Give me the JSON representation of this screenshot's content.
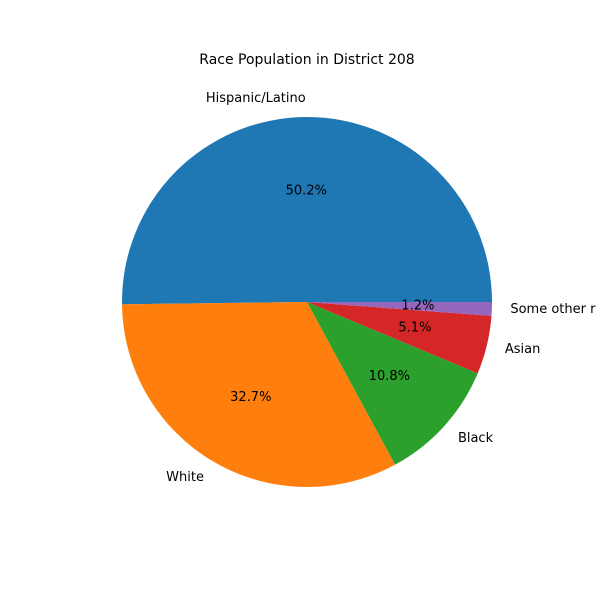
{
  "chart_data": {
    "type": "pie",
    "title": "Race Population in District 208",
    "categories": [
      "Hispanic/Latino",
      "White",
      "Black",
      "Asian",
      "Some other r"
    ],
    "values": [
      50.2,
      32.7,
      10.8,
      5.1,
      1.2
    ],
    "percent_labels": [
      "50.2%",
      "32.7%",
      "10.8%",
      "5.1%",
      "1.2%"
    ],
    "colors": [
      "#1f77b4",
      "#ff7f0e",
      "#2ca02c",
      "#d62728",
      "#9467bd"
    ],
    "start_angle_deg": 0,
    "direction": "counterclockwise"
  }
}
